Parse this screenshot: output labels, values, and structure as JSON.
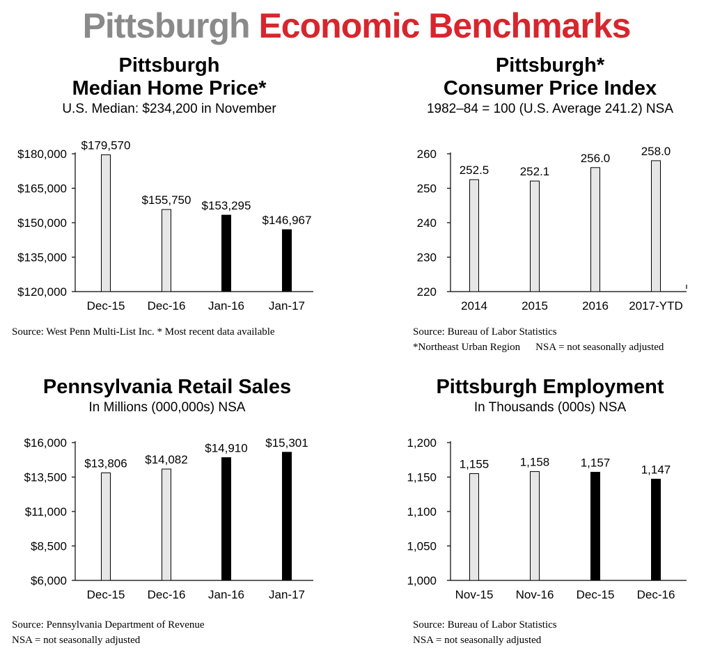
{
  "header": {
    "title_part1": "Pittsburgh",
    "title_part2": "Economic Benchmarks"
  },
  "colors": {
    "title_gray": "#8a8a8a",
    "title_red": "#d7262d",
    "bar_light": "#e6e6e6",
    "bar_dark": "#000000"
  },
  "panels": [
    {
      "title_line1": "Pittsburgh",
      "title_line2": "Median Home Price*",
      "subtitle": "U.S. Median: $234,200 in November",
      "source_line1": "Source: West Penn Multi-List Inc. * Most recent data available",
      "source_line2": ""
    },
    {
      "title_line1": "Pittsburgh*",
      "title_line2": "Consumer Price Index",
      "subtitle": "1982–84 = 100 (U.S. Average 241.2) NSA",
      "source_line1": "Source: Bureau of Labor Statistics",
      "source_line2a": "*Northeast Urban Region",
      "source_line2b": "NSA = not seasonally adjusted"
    },
    {
      "title_line1": "Pennsylvania Retail Sales",
      "subtitle": "In Millions (000,000s) NSA",
      "source_line1": "Source: Pennsylvania Department of Revenue",
      "source_line2": "NSA = not seasonally adjusted"
    },
    {
      "title_line1": "Pittsburgh Employment",
      "subtitle": "In Thousands (000s) NSA",
      "source_line1": "Source: Bureau of Labor Statistics",
      "source_line2": "NSA = not seasonally adjusted"
    }
  ],
  "chart_data": [
    {
      "type": "bar",
      "title": "Pittsburgh Median Home Price*",
      "subtitle": "U.S. Median: $234,200 in November",
      "categories": [
        "Dec-15",
        "Dec-16",
        "Jan-16",
        "Jan-17"
      ],
      "values": [
        179570,
        155750,
        153295,
        146967
      ],
      "data_labels": [
        "$179,570",
        "$155,750",
        "$153,295",
        "$146,967"
      ],
      "bar_colors": [
        "light",
        "light",
        "dark",
        "dark"
      ],
      "ylim": [
        120000,
        180000
      ],
      "yticks": [
        120000,
        135000,
        150000,
        165000,
        180000
      ],
      "ytick_labels": [
        "$120,000",
        "$135,000",
        "$150,000",
        "$165,000",
        "$180,000"
      ],
      "grid": false
    },
    {
      "type": "bar",
      "title": "Pittsburgh* Consumer Price Index",
      "subtitle": "1982–84 = 100 (U.S. Average 241.2) NSA",
      "categories": [
        "2014",
        "2015",
        "2016",
        "2017-YTD"
      ],
      "values": [
        252.5,
        252.1,
        256.0,
        258.0
      ],
      "data_labels": [
        "252.5",
        "252.1",
        "256.0",
        "258.0"
      ],
      "bar_colors": [
        "light",
        "light",
        "light",
        "light"
      ],
      "ylim": [
        220,
        260
      ],
      "yticks": [
        220,
        230,
        240,
        250,
        260
      ],
      "ytick_labels": [
        "220",
        "230",
        "240",
        "250",
        "260"
      ],
      "grid": false
    },
    {
      "type": "bar",
      "title": "Pennsylvania Retail Sales",
      "subtitle": "In Millions (000,000s) NSA",
      "categories": [
        "Dec-15",
        "Dec-16",
        "Jan-16",
        "Jan-17"
      ],
      "values": [
        13806,
        14082,
        14910,
        15301
      ],
      "data_labels": [
        "$13,806",
        "$14,082",
        "$14,910",
        "$15,301"
      ],
      "bar_colors": [
        "light",
        "light",
        "dark",
        "dark"
      ],
      "ylim": [
        6000,
        16000
      ],
      "yticks": [
        6000,
        8500,
        11000,
        13500,
        16000
      ],
      "ytick_labels": [
        "$6,000",
        "$8,500",
        "$11,000",
        "$13,500",
        "$16,000"
      ],
      "grid": false
    },
    {
      "type": "bar",
      "title": "Pittsburgh Employment",
      "subtitle": "In Thousands (000s) NSA",
      "categories": [
        "Nov-15",
        "Nov-16",
        "Dec-15",
        "Dec-16"
      ],
      "values": [
        1155,
        1158,
        1157,
        1147
      ],
      "data_labels": [
        "1,155",
        "1,158",
        "1,157",
        "1,147"
      ],
      "bar_colors": [
        "light",
        "light",
        "dark",
        "dark"
      ],
      "ylim": [
        1000,
        1200
      ],
      "yticks": [
        1000,
        1050,
        1100,
        1150,
        1200
      ],
      "ytick_labels": [
        "1,000",
        "1,050",
        "1,100",
        "1,150",
        "1,200"
      ],
      "grid": false
    }
  ]
}
